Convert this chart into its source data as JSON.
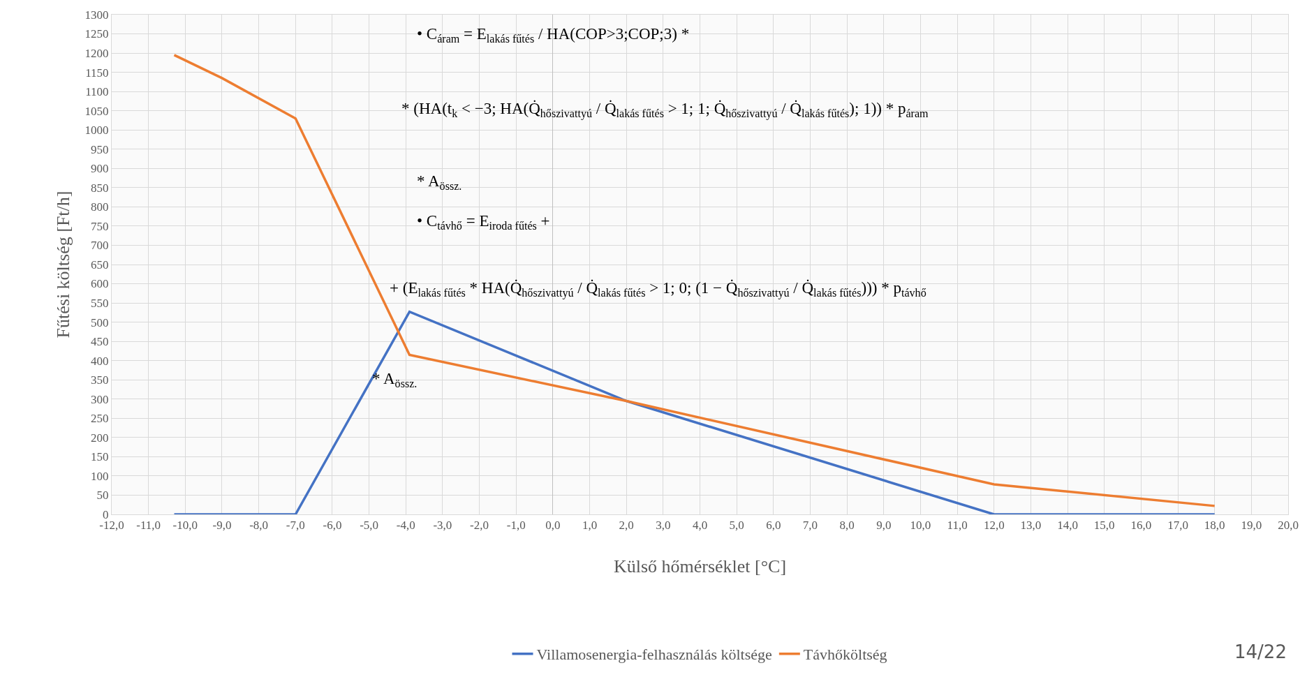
{
  "chart_data": {
    "type": "line",
    "xlabel": "Külső hőmérséklet [°C]",
    "ylabel": "Fűtési költség [Ft/h]",
    "xlim": [
      -12,
      20
    ],
    "xticks": [
      {
        "value": -12,
        "label": "-12,0"
      },
      {
        "value": -11,
        "label": "-11,0"
      },
      {
        "value": -10,
        "label": "-10,0"
      },
      {
        "value": -9,
        "label": "-9,0"
      },
      {
        "value": -8,
        "label": "-8,0"
      },
      {
        "value": -7,
        "label": "-7,0"
      },
      {
        "value": -6,
        "label": "-6,0"
      },
      {
        "value": -5,
        "label": "-5,0"
      },
      {
        "value": -4,
        "label": "-4,0"
      },
      {
        "value": -3,
        "label": "-3,0"
      },
      {
        "value": -2,
        "label": "-2,0"
      },
      {
        "value": -1,
        "label": "-1,0"
      },
      {
        "value": 0,
        "label": "0,0"
      },
      {
        "value": 1,
        "label": "1,0"
      },
      {
        "value": 2,
        "label": "2,0"
      },
      {
        "value": 3,
        "label": "3,0"
      },
      {
        "value": 4,
        "label": "4,0"
      },
      {
        "value": 5,
        "label": "5,0"
      },
      {
        "value": 6,
        "label": "6,0"
      },
      {
        "value": 7,
        "label": "7,0"
      },
      {
        "value": 8,
        "label": "8,0"
      },
      {
        "value": 9,
        "label": "9,0"
      },
      {
        "value": 10,
        "label": "10,0"
      },
      {
        "value": 11,
        "label": "11,0"
      },
      {
        "value": 12,
        "label": "12,0"
      },
      {
        "value": 13,
        "label": "13,0"
      },
      {
        "value": 14,
        "label": "14,0"
      },
      {
        "value": 15,
        "label": "15,0"
      },
      {
        "value": 16,
        "label": "16,0"
      },
      {
        "value": 17,
        "label": "17,0"
      },
      {
        "value": 18,
        "label": "18,0"
      },
      {
        "value": 19,
        "label": "19,0"
      },
      {
        "value": 20,
        "label": "20,0"
      }
    ],
    "ylim": [
      0,
      1300
    ],
    "yticks": [
      0,
      50,
      100,
      150,
      200,
      250,
      300,
      350,
      400,
      450,
      500,
      550,
      600,
      650,
      700,
      750,
      800,
      850,
      900,
      950,
      1000,
      1050,
      1100,
      1150,
      1200,
      1250,
      1300
    ],
    "grid": true,
    "legend": "bottom",
    "marker": "none",
    "line_style": "solid",
    "series": [
      {
        "name": "Villamosenergia-felhasználás költsége",
        "color": "#4472c4",
        "x": [
          -10.3,
          -7,
          -3.9,
          2,
          12,
          18
        ],
        "values": [
          0,
          0,
          527,
          295,
          0,
          0
        ]
      },
      {
        "name": "Távhőköltség",
        "color": "#ed7d31",
        "x": [
          -10.3,
          -9,
          -7,
          -3.9,
          2,
          12,
          18
        ],
        "values": [
          1195,
          1135,
          1030,
          415,
          295,
          78,
          22
        ]
      }
    ],
    "annotations": [
      "• C$_{áram}$ = E$_{lakás fűtés}$ / HA(COP>3;COP;3) *",
      "* (HA(t$_{k}$ < −3; HA(Q̇$_{hőszivattyú}$ / Q̇$_{lakás fűtés}$ > 1; 1; Q̇$_{hőszivattyú}$ / Q̇$_{lakás fűtés}$); 1)) * p$_{áram}$",
      "* A$_{össz.}$",
      "• C$_{távhő}$ = E$_{iroda fűtés}$ +",
      "+ (E$_{lakás fűtés}$ * HA(Q̇$_{hőszivattyú}$ / Q̇$_{lakás fűtés}$ > 1; 0; (1 − Q̇$_{hőszivattyú}$ / Q̇$_{lakás fűtés}$))) * p$_{távhő}$",
      "* A$_{össz.}$",
      "14/22"
    ]
  }
}
